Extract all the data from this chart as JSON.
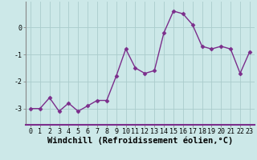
{
  "x": [
    0,
    1,
    2,
    3,
    4,
    5,
    6,
    7,
    8,
    9,
    10,
    11,
    12,
    13,
    14,
    15,
    16,
    17,
    18,
    19,
    20,
    21,
    22,
    23
  ],
  "y": [
    -3.0,
    -3.0,
    -2.6,
    -3.1,
    -2.8,
    -3.1,
    -2.9,
    -2.7,
    -2.7,
    -1.8,
    -0.8,
    -1.5,
    -1.7,
    -1.6,
    -0.2,
    0.6,
    0.5,
    0.1,
    -0.7,
    -0.8,
    -0.7,
    -0.8,
    -1.7,
    -0.9
  ],
  "line_color": "#7b2d8b",
  "marker": "D",
  "marker_size": 2.5,
  "bg_color": "#cce8e8",
  "grid_color": "#aacccc",
  "xlabel": "Windchill (Refroidissement éolien,°C)",
  "xlim": [
    -0.5,
    23.5
  ],
  "ylim": [
    -3.6,
    0.95
  ],
  "yticks": [
    0,
    -1,
    -2,
    -3
  ],
  "xlabel_fontsize": 7.5,
  "tick_fontsize": 6,
  "line_width": 1.0,
  "spine_color": "#888888",
  "axis_line_color": "#7b2d8b"
}
